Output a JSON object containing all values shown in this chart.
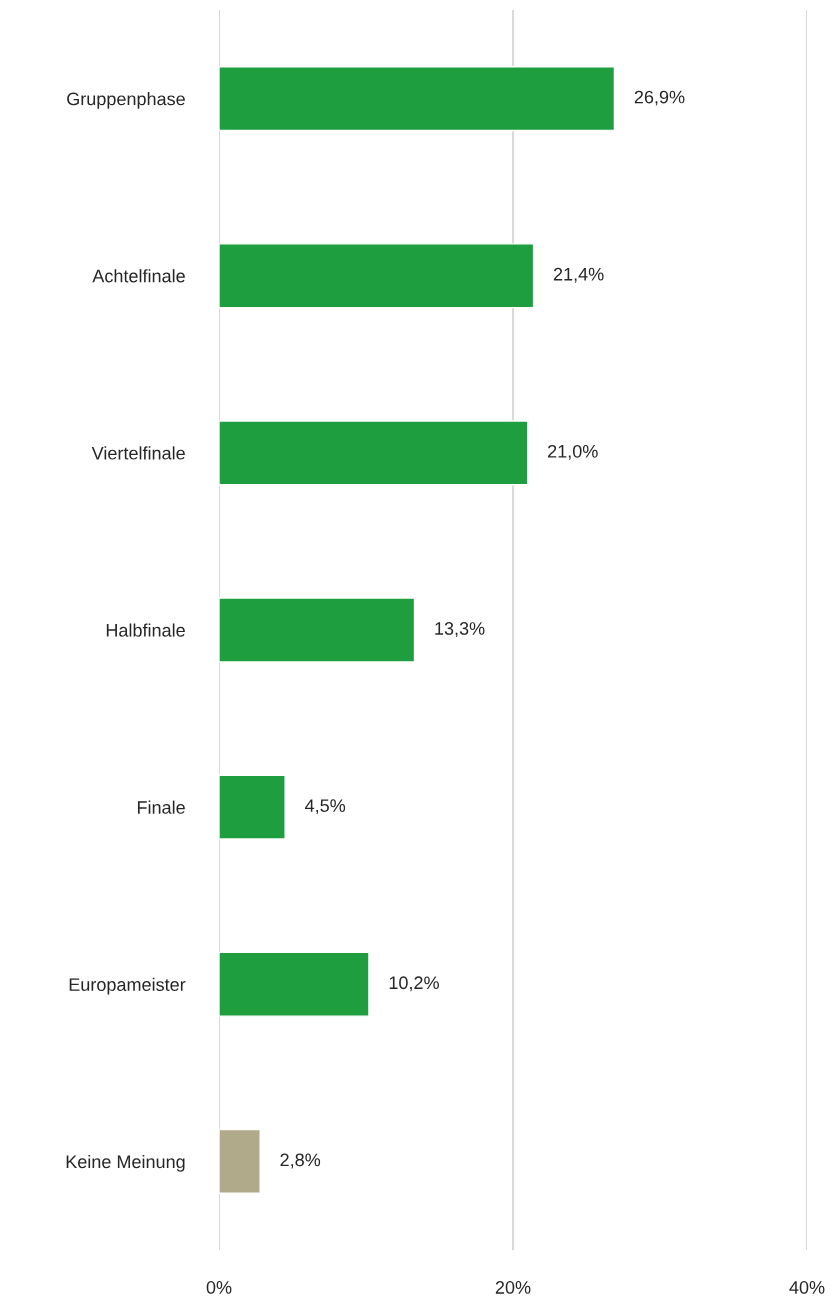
{
  "chart_data": {
    "type": "bar",
    "orientation": "horizontal",
    "categories": [
      "Gruppenphase",
      "Achtelfinale",
      "Viertelfinale",
      "Halbfinale",
      "Finale",
      "Europameister",
      "Keine Meinung"
    ],
    "values": [
      26.9,
      21.4,
      21.0,
      13.3,
      4.5,
      10.2,
      2.8
    ],
    "value_labels": [
      "26,9%",
      "21,4%",
      "21,0%",
      "13,3%",
      "4,5%",
      "10,2%",
      "2,8%"
    ],
    "colors": [
      "#1e9e3e",
      "#1e9e3e",
      "#1e9e3e",
      "#1e9e3e",
      "#1e9e3e",
      "#1e9e3e",
      "#b0a98a"
    ],
    "xlim": [
      0,
      40
    ],
    "xticks": [
      {
        "value": 0,
        "label": "0%"
      },
      {
        "value": 20,
        "label": "20%"
      },
      {
        "value": 40,
        "label": "40%"
      }
    ],
    "grid": "x"
  }
}
